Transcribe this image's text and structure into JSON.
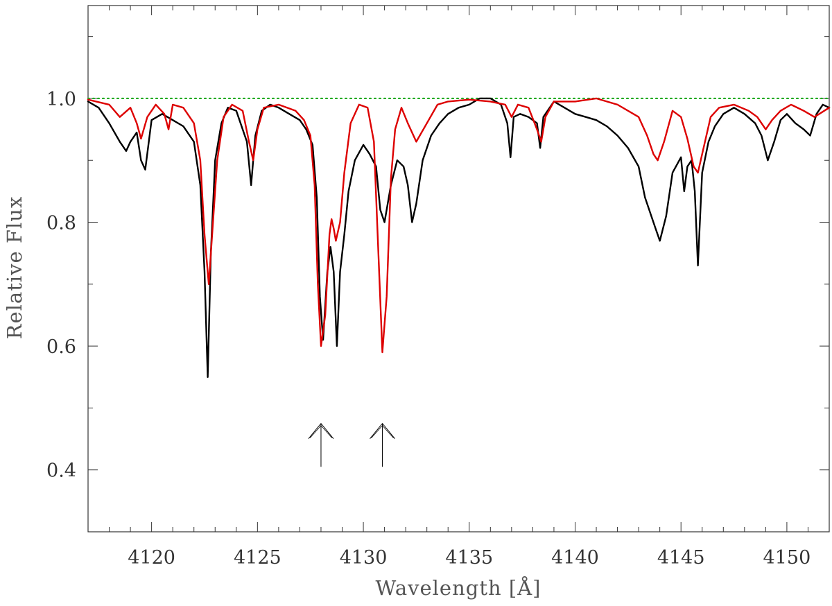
{
  "chart_data": {
    "type": "line",
    "xlabel": "Wavelength [Å]",
    "ylabel": "Relative Flux",
    "xlim": [
      4117,
      4152
    ],
    "ylim": [
      0.3,
      1.15
    ],
    "x_ticks": [
      4120,
      4125,
      4130,
      4135,
      4140,
      4145,
      4150
    ],
    "x_tick_labels": [
      "4120",
      "4125",
      "4130",
      "4135",
      "4140",
      "4145",
      "4150"
    ],
    "y_ticks": [
      0.4,
      0.6,
      0.8,
      1.0
    ],
    "y_tick_labels": [
      "0.4",
      "0.6",
      "0.8",
      "1.0"
    ],
    "grid": false,
    "continuum": {
      "y": 1.0,
      "color": "#22aa22",
      "style": "dotted"
    },
    "arrows": [
      {
        "x": 4128.0,
        "y_base": 0.405,
        "y_tip": 0.475
      },
      {
        "x": 4130.9,
        "y_base": 0.405,
        "y_tip": 0.475
      }
    ],
    "series": [
      {
        "color": "#000000",
        "x": [
          4117.0,
          4117.5,
          4118.0,
          4118.5,
          4118.8,
          4119.0,
          4119.3,
          4119.5,
          4119.7,
          4120.0,
          4120.5,
          4121.0,
          4121.5,
          4122.0,
          4122.3,
          4122.5,
          4122.65,
          4122.8,
          4123.0,
          4123.3,
          4123.6,
          4124.0,
          4124.5,
          4124.7,
          4124.8,
          4124.9,
          4125.2,
          4125.6,
          4126.0,
          4126.5,
          4127.0,
          4127.3,
          4127.6,
          4127.8,
          4127.95,
          4128.1,
          4128.3,
          4128.45,
          4128.6,
          4128.75,
          4128.9,
          4129.1,
          4129.3,
          4129.6,
          4130.0,
          4130.3,
          4130.6,
          4130.8,
          4131.0,
          4131.3,
          4131.6,
          4131.9,
          4132.1,
          4132.3,
          4132.5,
          4132.8,
          4133.2,
          4133.6,
          4134.0,
          4134.5,
          4135.0,
          4135.5,
          4136.0,
          4136.5,
          4136.8,
          4136.95,
          4137.1,
          4137.4,
          4137.8,
          4138.2,
          4138.35,
          4138.5,
          4139.0,
          4139.5,
          4140.0,
          4140.5,
          4141.0,
          4141.5,
          4142.0,
          4142.5,
          4143.0,
          4143.3,
          4143.6,
          4143.8,
          4144.0,
          4144.3,
          4144.6,
          4145.0,
          4145.15,
          4145.3,
          4145.5,
          4145.65,
          4145.8,
          4146.0,
          4146.3,
          4146.6,
          4147.0,
          4147.5,
          4148.0,
          4148.5,
          4148.8,
          4149.1,
          4149.4,
          4149.7,
          4150.0,
          4150.4,
          4150.8,
          4151.1,
          4151.4,
          4151.7,
          4152.0
        ],
        "y": [
          0.995,
          0.985,
          0.96,
          0.93,
          0.915,
          0.93,
          0.945,
          0.9,
          0.885,
          0.965,
          0.975,
          0.965,
          0.955,
          0.93,
          0.86,
          0.72,
          0.55,
          0.75,
          0.9,
          0.96,
          0.985,
          0.98,
          0.93,
          0.86,
          0.9,
          0.94,
          0.98,
          0.99,
          0.985,
          0.975,
          0.965,
          0.95,
          0.925,
          0.84,
          0.68,
          0.61,
          0.72,
          0.76,
          0.72,
          0.6,
          0.72,
          0.78,
          0.85,
          0.9,
          0.925,
          0.91,
          0.89,
          0.82,
          0.8,
          0.86,
          0.9,
          0.89,
          0.86,
          0.8,
          0.83,
          0.9,
          0.94,
          0.96,
          0.975,
          0.985,
          0.99,
          1.0,
          1.0,
          0.99,
          0.96,
          0.905,
          0.97,
          0.975,
          0.97,
          0.96,
          0.92,
          0.97,
          0.995,
          0.985,
          0.975,
          0.97,
          0.965,
          0.955,
          0.94,
          0.92,
          0.89,
          0.84,
          0.81,
          0.79,
          0.77,
          0.81,
          0.88,
          0.905,
          0.85,
          0.89,
          0.9,
          0.85,
          0.73,
          0.88,
          0.93,
          0.955,
          0.975,
          0.985,
          0.975,
          0.96,
          0.94,
          0.9,
          0.93,
          0.965,
          0.975,
          0.96,
          0.95,
          0.94,
          0.975,
          0.99,
          0.985
        ]
      },
      {
        "color": "#dd0000",
        "x": [
          4117.0,
          4118.0,
          4118.5,
          4119.0,
          4119.3,
          4119.5,
          4119.8,
          4120.2,
          4120.6,
          4120.8,
          4121.0,
          4121.5,
          4122.0,
          4122.3,
          4122.5,
          4122.7,
          4122.9,
          4123.1,
          4123.4,
          4123.8,
          4124.3,
          4124.6,
          4124.8,
          4125.0,
          4125.3,
          4126.0,
          4126.8,
          4127.2,
          4127.5,
          4127.7,
          4127.85,
          4128.0,
          4128.2,
          4128.4,
          4128.5,
          4128.6,
          4128.7,
          4128.9,
          4129.1,
          4129.4,
          4129.8,
          4130.2,
          4130.5,
          4130.7,
          4130.9,
          4131.1,
          4131.3,
          4131.5,
          4131.8,
          4132.1,
          4132.5,
          4133.0,
          4133.5,
          4134.0,
          4135.0,
          4136.0,
          4136.7,
          4137.0,
          4137.3,
          4137.8,
          4138.2,
          4138.4,
          4138.6,
          4139.0,
          4140.0,
          4141.0,
          4142.0,
          4143.0,
          4143.4,
          4143.7,
          4143.9,
          4144.2,
          4144.6,
          4145.0,
          4145.3,
          4145.6,
          4145.8,
          4146.0,
          4146.4,
          4146.8,
          4147.5,
          4148.2,
          4148.6,
          4149.0,
          4149.3,
          4149.7,
          4150.2,
          4150.8,
          4151.3,
          4152.0
        ],
        "y": [
          0.998,
          0.99,
          0.97,
          0.985,
          0.96,
          0.935,
          0.97,
          0.99,
          0.975,
          0.95,
          0.99,
          0.985,
          0.96,
          0.9,
          0.78,
          0.7,
          0.8,
          0.9,
          0.97,
          0.99,
          0.98,
          0.93,
          0.9,
          0.95,
          0.985,
          0.99,
          0.98,
          0.965,
          0.94,
          0.86,
          0.7,
          0.6,
          0.65,
          0.78,
          0.805,
          0.79,
          0.77,
          0.8,
          0.88,
          0.96,
          0.99,
          0.985,
          0.93,
          0.76,
          0.59,
          0.68,
          0.87,
          0.95,
          0.985,
          0.96,
          0.93,
          0.96,
          0.99,
          0.995,
          0.998,
          0.995,
          0.99,
          0.97,
          0.99,
          0.985,
          0.95,
          0.93,
          0.97,
          0.995,
          0.995,
          1.0,
          0.99,
          0.97,
          0.94,
          0.91,
          0.9,
          0.93,
          0.98,
          0.97,
          0.935,
          0.89,
          0.88,
          0.91,
          0.97,
          0.985,
          0.99,
          0.98,
          0.97,
          0.95,
          0.965,
          0.98,
          0.99,
          0.98,
          0.97,
          0.985
        ]
      }
    ]
  }
}
